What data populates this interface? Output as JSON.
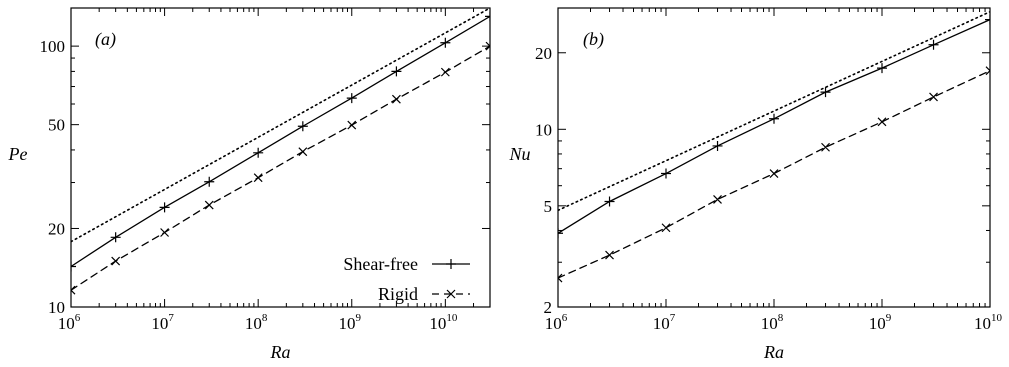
{
  "chart_data": [
    {
      "type": "line",
      "panel_label": "(a)",
      "xlabel": "Ra",
      "ylabel": "Pe",
      "xscale": "log",
      "yscale": "log",
      "xlim": [
        1000000,
        30000000000
      ],
      "ylim": [
        10,
        140
      ],
      "x_ticks": [
        {
          "base": "10",
          "exp": "6",
          "value": 1000000
        },
        {
          "base": "10",
          "exp": "7",
          "value": 10000000
        },
        {
          "base": "10",
          "exp": "8",
          "value": 100000000
        },
        {
          "base": "10",
          "exp": "9",
          "value": 1000000000
        },
        {
          "base": "10",
          "exp": "10",
          "value": 10000000000
        }
      ],
      "y_ticks": [
        {
          "label": "10",
          "value": 10
        },
        {
          "label": "20",
          "value": 20
        },
        {
          "label": "50",
          "value": 50
        },
        {
          "label": "100",
          "value": 100
        }
      ],
      "grid": false,
      "legend_position": "bottom-right",
      "series": [
        {
          "name": "Shear-free",
          "line": "solid",
          "marker": "plus",
          "x": [
            1000000,
            3000000,
            10000000,
            30000000,
            100000000,
            300000000,
            1000000000,
            3000000000,
            10000000000,
            30000000000
          ],
          "y": [
            14.3,
            18.5,
            24.1,
            30.2,
            39.0,
            49.3,
            63.2,
            80.0,
            103.0,
            130.0
          ]
        },
        {
          "name": "Rigid",
          "line": "dashed",
          "marker": "cross",
          "x": [
            1000000,
            3000000,
            10000000,
            30000000,
            100000000,
            300000000,
            1000000000,
            3000000000,
            10000000000,
            30000000000
          ],
          "y": [
            11.6,
            15.0,
            19.3,
            24.6,
            31.3,
            39.4,
            49.8,
            62.6,
            79.5,
            100.0
          ]
        },
        {
          "line": "dotted",
          "marker": "none",
          "x": [
            1000000,
            30000000000
          ],
          "y": [
            17.8,
            140.0
          ]
        }
      ]
    },
    {
      "type": "line",
      "panel_label": "(b)",
      "xlabel": "Ra",
      "ylabel": "Nu",
      "xscale": "log",
      "yscale": "log",
      "xlim": [
        1000000,
        10000000000
      ],
      "ylim": [
        2,
        30
      ],
      "x_ticks": [
        {
          "base": "10",
          "exp": "6",
          "value": 1000000
        },
        {
          "base": "10",
          "exp": "7",
          "value": 10000000
        },
        {
          "base": "10",
          "exp": "8",
          "value": 100000000
        },
        {
          "base": "10",
          "exp": "9",
          "value": 1000000000
        },
        {
          "base": "10",
          "exp": "10",
          "value": 10000000000
        }
      ],
      "y_ticks": [
        {
          "label": "2",
          "value": 2
        },
        {
          "label": "5",
          "value": 5
        },
        {
          "label": "10",
          "value": 10
        },
        {
          "label": "20",
          "value": 20
        }
      ],
      "grid": false,
      "series": [
        {
          "name": "Shear-free",
          "line": "solid",
          "marker": "plus",
          "x": [
            1000000,
            3000000,
            10000000,
            30000000,
            100000000,
            300000000,
            1000000000,
            3000000000,
            10000000000
          ],
          "y": [
            3.9,
            5.2,
            6.7,
            8.6,
            11.0,
            14.0,
            17.4,
            21.5,
            27.0
          ]
        },
        {
          "name": "Rigid",
          "line": "dashed",
          "marker": "cross",
          "x": [
            1000000,
            3000000,
            10000000,
            30000000,
            100000000,
            300000000,
            1000000000,
            3000000000,
            10000000000
          ],
          "y": [
            2.6,
            3.2,
            4.1,
            5.3,
            6.7,
            8.5,
            10.7,
            13.4,
            17.0
          ]
        },
        {
          "line": "dotted",
          "marker": "none",
          "x": [
            1000000,
            10000000000
          ],
          "y": [
            4.8,
            29.0
          ]
        }
      ]
    }
  ]
}
